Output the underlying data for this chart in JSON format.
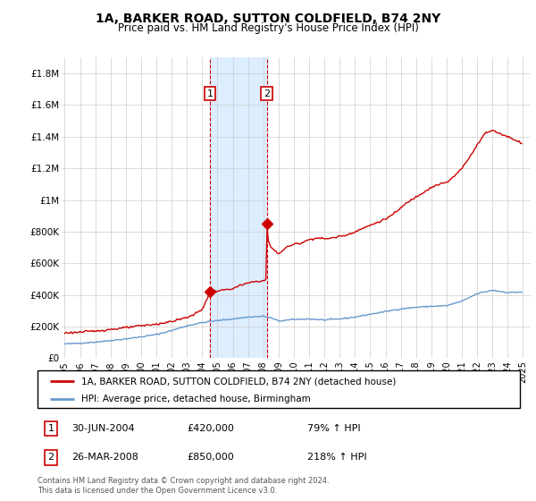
{
  "title": "1A, BARKER ROAD, SUTTON COLDFIELD, B74 2NY",
  "subtitle": "Price paid vs. HM Land Registry's House Price Index (HPI)",
  "legend_line1": "1A, BARKER ROAD, SUTTON COLDFIELD, B74 2NY (detached house)",
  "legend_line2": "HPI: Average price, detached house, Birmingham",
  "transaction1": {
    "label": "1",
    "date": "30-JUN-2004",
    "price": "£420,000",
    "hpi": "79% ↑ HPI",
    "year": 2004.5,
    "price_val": 420000
  },
  "transaction2": {
    "label": "2",
    "date": "26-MAR-2008",
    "price": "£850,000",
    "hpi": "218% ↑ HPI",
    "year": 2008.23,
    "price_val": 850000
  },
  "footnote": "Contains HM Land Registry data © Crown copyright and database right 2024.\nThis data is licensed under the Open Government Licence v3.0.",
  "house_color": "#cc0000",
  "hpi_color": "#6699cc",
  "shading_color": "#ddeeff",
  "ylim": [
    0,
    1900000
  ],
  "xlim_start": 1994.8,
  "xlim_end": 2025.5,
  "yticks": [
    0,
    200000,
    400000,
    600000,
    800000,
    1000000,
    1200000,
    1400000,
    1600000,
    1800000
  ],
  "ytick_labels": [
    "£0",
    "£200K",
    "£400K",
    "£600K",
    "£800K",
    "£1M",
    "£1.2M",
    "£1.4M",
    "£1.6M",
    "£1.8M"
  ],
  "xtick_years": [
    1995,
    1996,
    1997,
    1998,
    1999,
    2000,
    2001,
    2002,
    2003,
    2004,
    2005,
    2006,
    2007,
    2008,
    2009,
    2010,
    2011,
    2012,
    2013,
    2014,
    2015,
    2016,
    2017,
    2018,
    2019,
    2020,
    2021,
    2022,
    2023,
    2024,
    2025
  ]
}
